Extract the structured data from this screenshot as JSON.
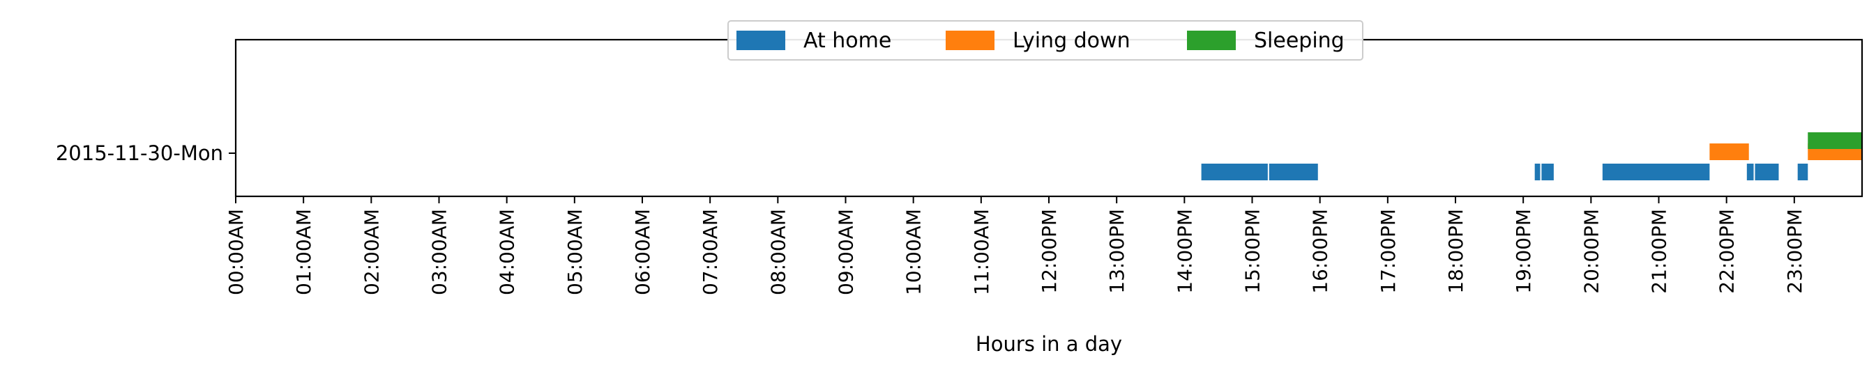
{
  "chart_data": {
    "type": "timeline",
    "title": "",
    "xlabel": "Hours in a day",
    "ylabel": "",
    "xlim": [
      0,
      24
    ],
    "x_ticks": [
      {
        "value": 0,
        "label": "00:00AM"
      },
      {
        "value": 1,
        "label": "01:00AM"
      },
      {
        "value": 2,
        "label": "02:00AM"
      },
      {
        "value": 3,
        "label": "03:00AM"
      },
      {
        "value": 4,
        "label": "04:00AM"
      },
      {
        "value": 5,
        "label": "05:00AM"
      },
      {
        "value": 6,
        "label": "06:00AM"
      },
      {
        "value": 7,
        "label": "07:00AM"
      },
      {
        "value": 8,
        "label": "08:00AM"
      },
      {
        "value": 9,
        "label": "09:00AM"
      },
      {
        "value": 10,
        "label": "10:00AM"
      },
      {
        "value": 11,
        "label": "11:00AM"
      },
      {
        "value": 12,
        "label": "12:00PM"
      },
      {
        "value": 13,
        "label": "13:00PM"
      },
      {
        "value": 14,
        "label": "14:00PM"
      },
      {
        "value": 15,
        "label": "15:00PM"
      },
      {
        "value": 16,
        "label": "16:00PM"
      },
      {
        "value": 17,
        "label": "17:00PM"
      },
      {
        "value": 18,
        "label": "18:00PM"
      },
      {
        "value": 19,
        "label": "19:00PM"
      },
      {
        "value": 20,
        "label": "20:00PM"
      },
      {
        "value": 21,
        "label": "21:00PM"
      },
      {
        "value": 22,
        "label": "22:00PM"
      },
      {
        "value": 23,
        "label": "23:00PM"
      }
    ],
    "categories": [
      "2015-11-30-Mon"
    ],
    "legend_position": "top-center",
    "grid": false,
    "series": [
      {
        "name": "At home",
        "color": "#1f77b4",
        "intervals": [
          {
            "start": 14.25,
            "end": 15.23
          },
          {
            "start": 15.25,
            "end": 15.97
          },
          {
            "start": 19.17,
            "end": 19.25
          },
          {
            "start": 19.27,
            "end": 19.45
          },
          {
            "start": 20.17,
            "end": 21.75
          },
          {
            "start": 22.3,
            "end": 22.4
          },
          {
            "start": 22.42,
            "end": 22.77
          },
          {
            "start": 23.05,
            "end": 23.2
          }
        ]
      },
      {
        "name": "Lying down",
        "color": "#ff7f0e",
        "intervals": [
          {
            "start": 21.75,
            "end": 22.33
          },
          {
            "start": 23.2,
            "end": 24.0
          }
        ]
      },
      {
        "name": "Sleeping",
        "color": "#2ca02c",
        "intervals": [
          {
            "start": 23.2,
            "end": 24.0
          }
        ]
      }
    ]
  }
}
